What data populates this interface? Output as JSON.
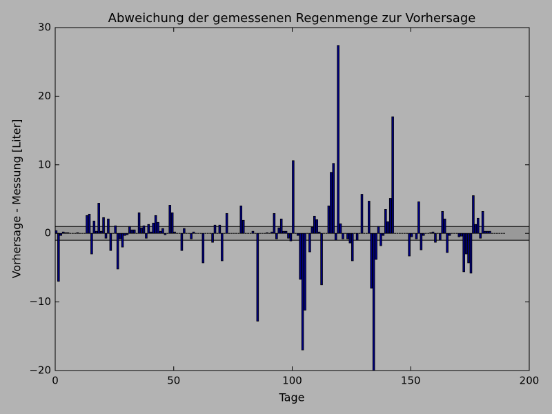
{
  "chart_data": {
    "type": "bar",
    "title": "Abweichung der gemessenen Regenmenge zur Vorhersage",
    "xlabel": "Tage",
    "ylabel": "Vorhersage - Messung [Liter]",
    "color": "#000080",
    "hspan": [
      -1,
      1
    ],
    "hspan_color": "#999999",
    "xlim": [
      0,
      200
    ],
    "xticks": [
      0,
      50,
      100,
      150,
      200
    ],
    "ylim": [
      -20,
      30
    ],
    "yticks": [
      {
        "value": -20,
        "label": "−20"
      },
      {
        "value": -10,
        "label": "−10"
      },
      0,
      10,
      20,
      30
    ],
    "x": [
      0,
      1,
      2,
      3,
      4,
      5,
      6,
      7,
      8,
      9,
      10,
      11,
      12,
      13,
      14,
      15,
      16,
      17,
      18,
      19,
      20,
      21,
      22,
      23,
      24,
      25,
      26,
      27,
      28,
      29,
      30,
      31,
      32,
      33,
      34,
      35,
      36,
      37,
      38,
      39,
      40,
      41,
      42,
      43,
      44,
      45,
      46,
      47,
      48,
      49,
      50,
      51,
      52,
      53,
      54,
      55,
      56,
      57,
      58,
      59,
      60,
      61,
      62,
      63,
      64,
      65,
      66,
      67,
      68,
      69,
      70,
      71,
      72,
      73,
      74,
      75,
      76,
      77,
      78,
      79,
      80,
      81,
      82,
      83,
      84,
      85,
      86,
      87,
      88,
      89,
      90,
      91,
      92,
      93,
      94,
      95,
      96,
      97,
      98,
      99,
      100,
      101,
      102,
      103,
      104,
      105,
      106,
      107,
      108,
      109,
      110,
      111,
      112,
      113,
      114,
      115,
      116,
      117,
      118,
      119,
      120,
      121,
      122,
      123,
      124,
      125,
      126,
      127,
      128,
      129,
      130,
      131,
      132,
      133,
      134,
      135,
      136,
      137,
      138,
      139,
      140,
      141,
      142,
      143,
      144,
      145,
      146,
      147,
      148,
      149,
      150,
      151,
      152,
      153,
      154,
      155,
      156,
      157,
      158,
      159,
      160,
      161,
      162,
      163,
      164,
      165,
      166,
      167,
      168,
      169,
      170,
      171,
      172,
      173,
      174,
      175,
      176,
      177,
      178,
      179,
      180,
      181,
      182,
      183,
      184,
      185,
      186,
      187,
      188,
      189
    ],
    "values": [
      0.4,
      -7,
      -0.3,
      0.2,
      0.1,
      0.1,
      0,
      0,
      0,
      0.1,
      0,
      0,
      0,
      2.6,
      2.8,
      -3,
      1.8,
      0.3,
      4.4,
      0.3,
      2.3,
      -0.7,
      2.1,
      -2.5,
      0,
      1.1,
      -5.2,
      -0.8,
      -2,
      -0.3,
      -0.2,
      1,
      0.5,
      0.5,
      0,
      3,
      0.8,
      1.1,
      -0.7,
      1.3,
      0.2,
      1.5,
      2.6,
      1.6,
      0.3,
      0.7,
      -0.2,
      0,
      4.1,
      3,
      0.2,
      0,
      0,
      -2.5,
      0.7,
      0,
      0,
      -0.8,
      0.2,
      0,
      0,
      0,
      -4.3,
      0,
      0,
      0,
      -1.3,
      1.2,
      0,
      1.2,
      -4,
      0,
      2.9,
      0,
      0,
      0,
      0,
      0,
      4,
      1.9,
      0,
      0,
      0,
      0.3,
      0,
      -12.8,
      0,
      0,
      0,
      0.1,
      0,
      0.2,
      2.9,
      -0.8,
      0.8,
      2.1,
      0.3,
      0.3,
      -0.7,
      -1.1,
      10.6,
      0,
      -0.3,
      -6.7,
      -17,
      -11.2,
      0,
      -2.7,
      0.9,
      2.5,
      2,
      0.2,
      -7.5,
      0,
      0,
      4,
      8.9,
      10.2,
      -1,
      27.4,
      1.4,
      -0.8,
      0,
      -0.8,
      -1.4,
      -4,
      0,
      -1,
      0,
      5.7,
      0,
      0,
      4.7,
      -8,
      -21,
      -3.8,
      1,
      -1.8,
      -0.3,
      3.5,
      1.7,
      5.1,
      17,
      0,
      0,
      0,
      0,
      0,
      0,
      -3.3,
      -0.5,
      0,
      -0.8,
      4.6,
      -2.4,
      -0.3,
      0,
      0,
      0.1,
      0.2,
      -1.3,
      0,
      -1,
      3.2,
      2.1,
      -2.8,
      -0.3,
      0,
      0,
      0,
      -0.5,
      -0.4,
      -5.6,
      -3,
      -4.3,
      -5.8,
      5.5,
      1.3,
      2.2,
      -0.7,
      3.2,
      0.3,
      0.3,
      0.3,
      0,
      0,
      0,
      0,
      0,
      0
    ]
  }
}
